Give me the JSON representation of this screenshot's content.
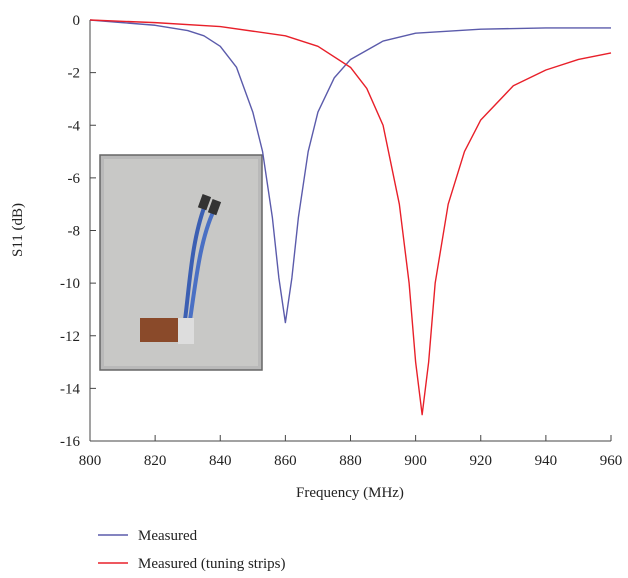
{
  "chart_data": {
    "type": "line",
    "x_label": "Frequency (MHz)",
    "y_label": "S11 (dB)",
    "xlim": [
      800,
      960
    ],
    "xticks": [
      800,
      820,
      840,
      860,
      880,
      900,
      920,
      940,
      960
    ],
    "ylim": [
      -16,
      0
    ],
    "yticks": [
      0,
      -2,
      -4,
      -6,
      -8,
      -10,
      -12,
      -14,
      -16
    ],
    "series": [
      {
        "name": "Measured",
        "color": "#5b5bab",
        "x": [
          800,
          810,
          820,
          830,
          835,
          840,
          845,
          850,
          853,
          856,
          858,
          860,
          862,
          864,
          867,
          870,
          875,
          880,
          890,
          900,
          920,
          940,
          960
        ],
        "values": [
          0,
          -0.1,
          -0.2,
          -0.4,
          -0.6,
          -1.0,
          -1.8,
          -3.5,
          -5,
          -7.5,
          -9.8,
          -11.5,
          -9.8,
          -7.5,
          -5,
          -3.5,
          -2.2,
          -1.5,
          -0.8,
          -0.5,
          -0.35,
          -0.3,
          -0.3
        ]
      },
      {
        "name": "Measured (tuning strips)",
        "color": "#e8202a",
        "x": [
          800,
          820,
          840,
          860,
          870,
          880,
          885,
          890,
          895,
          898,
          900,
          902,
          904,
          906,
          910,
          915,
          920,
          930,
          940,
          950,
          960
        ],
        "values": [
          0,
          -0.1,
          -0.25,
          -0.6,
          -1.0,
          -1.8,
          -2.6,
          -4.0,
          -7,
          -10,
          -13,
          -15,
          -13,
          -10,
          -7,
          -5,
          -3.8,
          -2.5,
          -1.9,
          -1.5,
          -1.25
        ]
      }
    ]
  }
}
